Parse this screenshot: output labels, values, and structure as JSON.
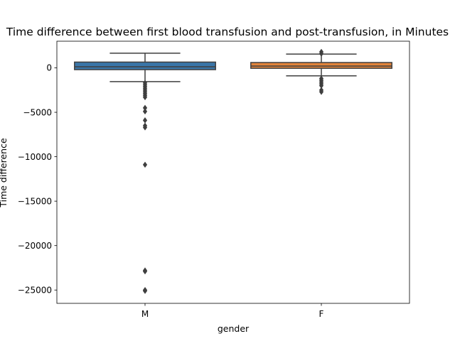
{
  "chart_data": {
    "type": "box",
    "title": "Time difference between first blood transfusion and post-transfusion, in Minutes",
    "xlabel": "gender",
    "ylabel": "Time difference",
    "categories": [
      "M",
      "F"
    ],
    "ylim": [
      -26500,
      3000
    ],
    "yticks": [
      0,
      -5000,
      -10000,
      -15000,
      -20000,
      -25000
    ],
    "ytick_labels": [
      "0",
      "−5000",
      "−10000",
      "−15000",
      "−20000",
      "−25000"
    ],
    "grid": false,
    "legend": "none",
    "series": [
      {
        "category": "M",
        "color": "#3a76a8",
        "whisker_low": -1550,
        "q1": -200,
        "median": 120,
        "q3": 650,
        "whisker_high": 1650,
        "outliers": [
          -1700,
          -1900,
          -2100,
          -2300,
          -2500,
          -2700,
          -2900,
          -3100,
          -3300,
          -4500,
          -4900,
          -5900,
          -6500,
          -6700,
          -10900,
          -22800,
          -22900,
          -25000,
          -25100
        ]
      },
      {
        "category": "F",
        "color": "#e1843a",
        "whisker_low": -900,
        "q1": -50,
        "median": 200,
        "q3": 600,
        "whisker_high": 1550,
        "outliers": [
          1600,
          1800,
          -1200,
          -1400,
          -1600,
          -1800,
          -2000,
          -2500,
          -2700
        ]
      }
    ]
  }
}
